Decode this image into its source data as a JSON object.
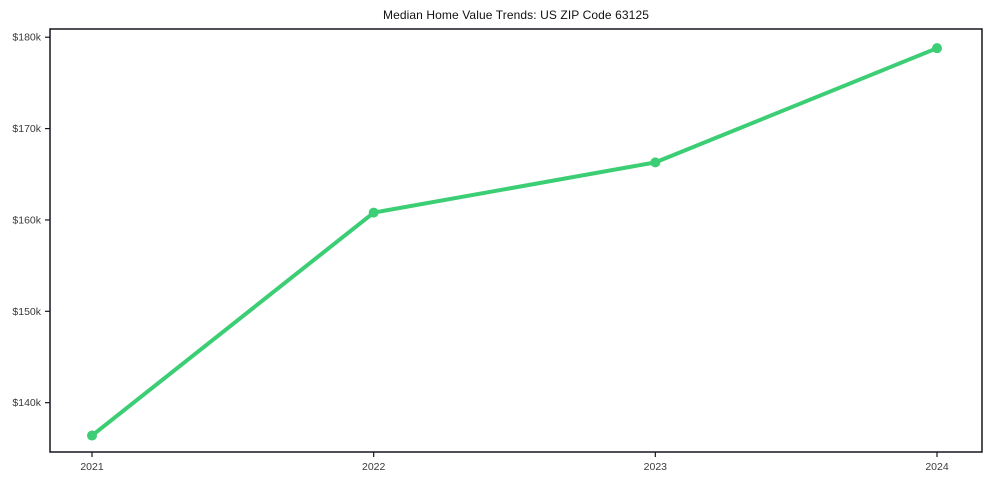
{
  "chart": {
    "title": "Median Home Value Trends: US ZIP Code 63125"
  },
  "chart_data": {
    "type": "line",
    "title": "Median Home Value Trends: US ZIP Code 63125",
    "x": [
      2021,
      2022,
      2023,
      2024
    ],
    "xtick_labels": [
      "2021",
      "2022",
      "2023",
      "2024"
    ],
    "series": [
      {
        "name": "Median Home Value",
        "values": [
          136400,
          160800,
          166300,
          178800
        ]
      }
    ],
    "xlabel": "",
    "ylabel": "",
    "ylim": [
      134600,
      180900
    ],
    "yticks": [
      140000,
      150000,
      160000,
      170000,
      180000
    ],
    "ytick_labels": [
      "$140k",
      "$150k",
      "$160k",
      "$170k",
      "$180k"
    ],
    "grid": false,
    "legend": "none",
    "line_color": "#3bce74",
    "marker": "circle",
    "marker_radius": 5,
    "line_width": 4,
    "axis_color": "#16161f",
    "tick_label_color": "#3a3a3a",
    "background": "#ffffff"
  }
}
